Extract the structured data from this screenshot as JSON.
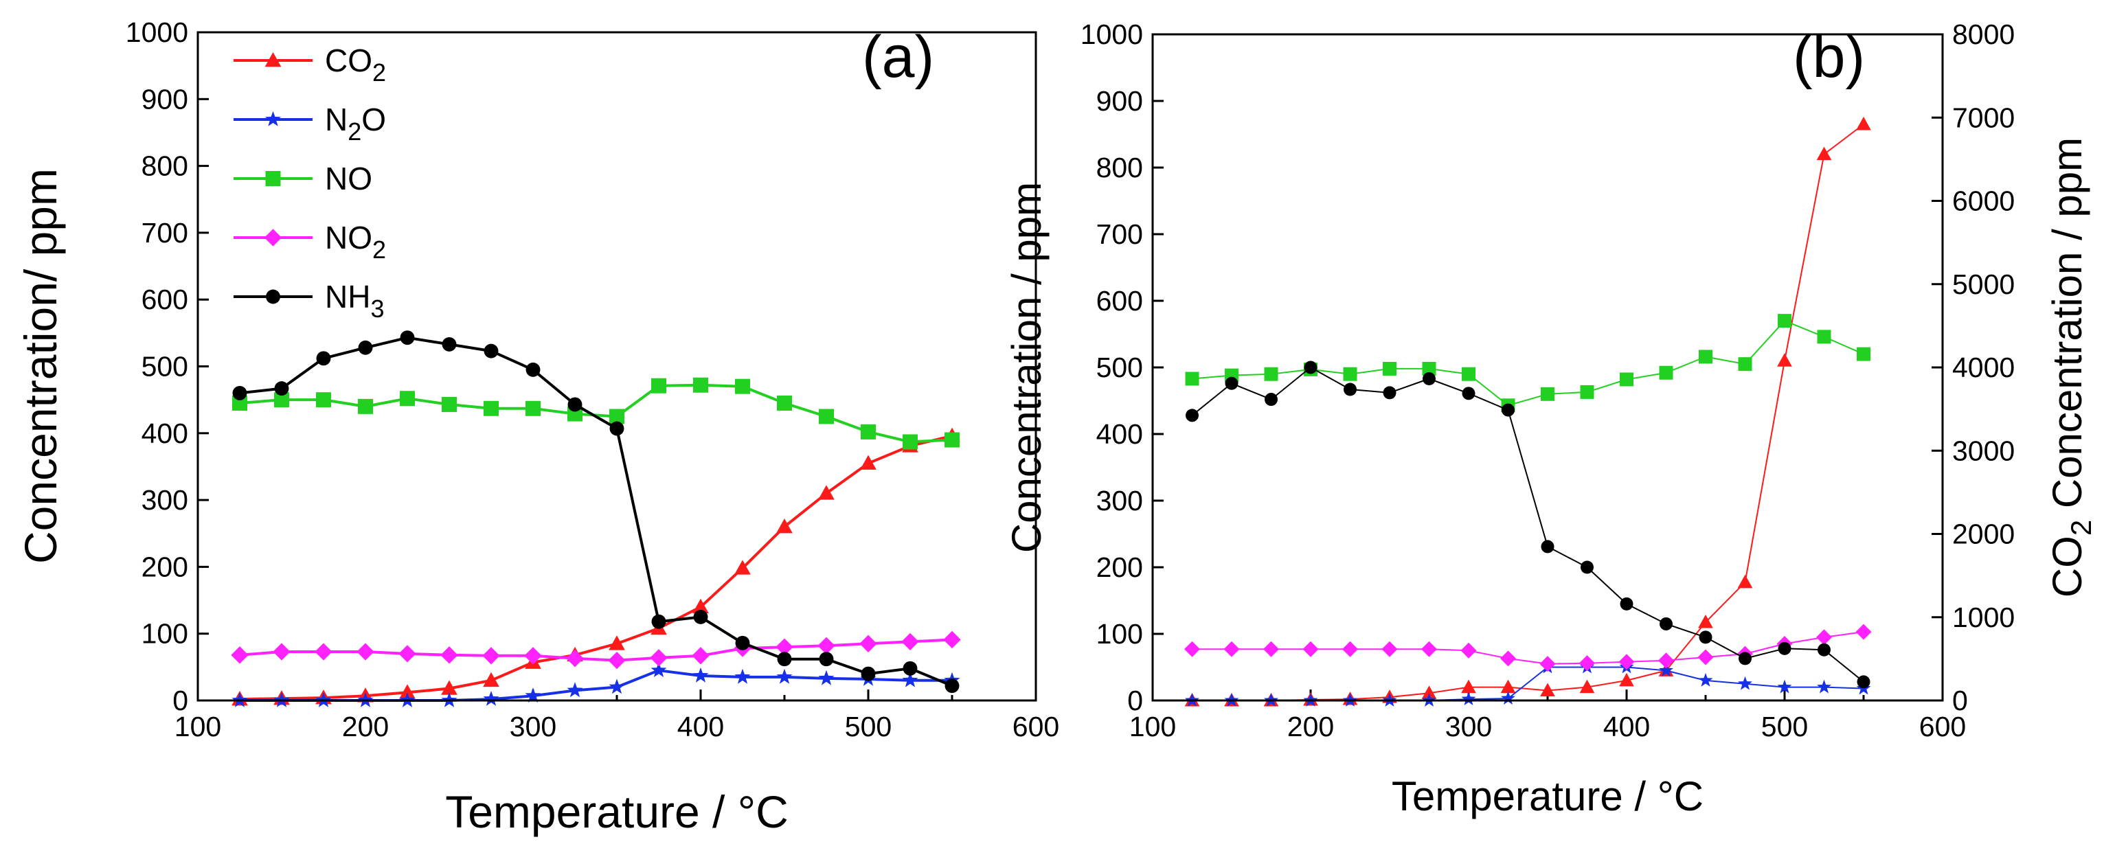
{
  "chart_data": [
    {
      "type": "line",
      "panel_label": "(a)",
      "xlabel": "Temperature / °C",
      "ylabel": "Concentration/ ppm",
      "xlim": [
        100,
        600
      ],
      "ylim": [
        0,
        1000
      ],
      "xticks": [
        100,
        200,
        300,
        400,
        500,
        600
      ],
      "yticks": [
        0,
        100,
        200,
        300,
        400,
        500,
        600,
        700,
        800,
        900,
        1000
      ],
      "x": [
        125,
        150,
        175,
        200,
        225,
        250,
        275,
        300,
        325,
        350,
        375,
        400,
        425,
        450,
        475,
        500,
        525,
        550
      ],
      "legend_position": "top-left",
      "series": [
        {
          "name": "CO2",
          "legend_main": "CO",
          "legend_sub": "2",
          "color": "#ff1a1a",
          "marker": "triangle",
          "values": [
            2,
            3,
            4,
            7,
            12,
            18,
            30,
            57,
            68,
            85,
            108,
            140,
            198,
            260,
            310,
            355,
            381,
            396
          ]
        },
        {
          "name": "N2O",
          "legend_main": "N",
          "legend_sub": "2",
          "legend_tail": "O",
          "color": "#1530e8",
          "marker": "star",
          "values": [
            0,
            0,
            0,
            0,
            0,
            0,
            2,
            7,
            15,
            20,
            45,
            37,
            35,
            35,
            33,
            32,
            30,
            30
          ]
        },
        {
          "name": "NO",
          "legend_main": "NO",
          "legend_sub": "",
          "color": "#22d022",
          "marker": "square",
          "values": [
            445,
            450,
            450,
            440,
            452,
            443,
            437,
            437,
            429,
            425,
            471,
            472,
            470,
            445,
            425,
            402,
            387,
            390
          ]
        },
        {
          "name": "NO2",
          "legend_main": "NO",
          "legend_sub": "2",
          "color": "#ff22ff",
          "marker": "diamond",
          "values": [
            68,
            73,
            73,
            73,
            70,
            68,
            67,
            67,
            63,
            60,
            64,
            67,
            78,
            80,
            82,
            85,
            88,
            91
          ]
        },
        {
          "name": "NH3",
          "legend_main": "NH",
          "legend_sub": "3",
          "color": "#000000",
          "marker": "circle",
          "values": [
            460,
            467,
            512,
            528,
            543,
            533,
            523,
            495,
            443,
            407,
            118,
            125,
            86,
            62,
            62,
            40,
            48,
            22
          ]
        }
      ]
    },
    {
      "type": "line",
      "panel_label": "(b)",
      "xlabel": "Temperature / °C",
      "ylabel": "Concentration / ppm",
      "y2label_main": "CO",
      "y2label_sub": "2",
      "y2label_tail": " Concentration / ppm",
      "xlim": [
        100,
        600
      ],
      "ylim": [
        0,
        1000
      ],
      "y2lim": [
        0,
        8000
      ],
      "xticks": [
        100,
        200,
        300,
        400,
        500,
        600
      ],
      "yticks": [
        0,
        100,
        200,
        300,
        400,
        500,
        600,
        700,
        800,
        900,
        1000
      ],
      "y2ticks": [
        0,
        1000,
        2000,
        3000,
        4000,
        5000,
        6000,
        7000,
        8000
      ],
      "x": [
        125,
        150,
        175,
        200,
        225,
        250,
        275,
        300,
        325,
        350,
        375,
        400,
        425,
        450,
        475,
        500,
        525,
        550
      ],
      "series": [
        {
          "name": "CO2",
          "axis": "right",
          "color": "#ff1a1a",
          "marker": "triangle",
          "values": [
            0,
            0,
            0,
            8,
            16,
            40,
            88,
            160,
            160,
            120,
            160,
            240,
            360,
            940,
            1420,
            4080,
            6560,
            6920
          ]
        },
        {
          "name": "N2O",
          "axis": "left",
          "color": "#1530e8",
          "marker": "star",
          "values": [
            0,
            0,
            0,
            0,
            0,
            0,
            0,
            2,
            3,
            50,
            50,
            50,
            45,
            30,
            25,
            20,
            20,
            18
          ]
        },
        {
          "name": "NO",
          "axis": "left",
          "color": "#22d022",
          "marker": "square",
          "values": [
            483,
            488,
            490,
            497,
            490,
            498,
            498,
            490,
            443,
            460,
            463,
            482,
            492,
            516,
            505,
            570,
            546,
            520
          ]
        },
        {
          "name": "NO2",
          "axis": "left",
          "color": "#ff22ff",
          "marker": "diamond",
          "values": [
            77,
            77,
            77,
            77,
            77,
            77,
            77,
            75,
            63,
            55,
            56,
            58,
            60,
            65,
            70,
            85,
            95,
            103
          ]
        },
        {
          "name": "NH3",
          "axis": "left",
          "color": "#000000",
          "marker": "circle",
          "values": [
            428,
            476,
            452,
            500,
            467,
            462,
            483,
            461,
            436,
            231,
            200,
            145,
            115,
            95,
            63,
            78,
            76,
            28
          ]
        }
      ]
    }
  ]
}
